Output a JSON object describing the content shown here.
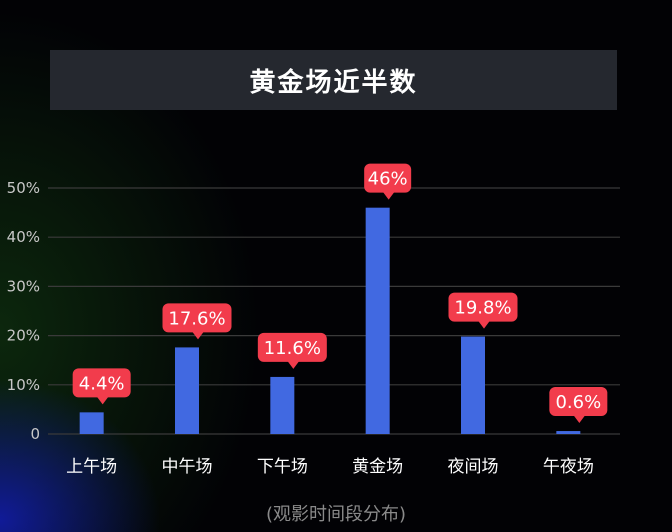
{
  "chart_data": {
    "type": "bar",
    "title": "黄金场近半数",
    "xlabel": "(观影时间段分布)",
    "ylabel": "",
    "categories": [
      "上午场",
      "中午场",
      "下午场",
      "黄金场",
      "夜间场",
      "午夜场"
    ],
    "values": [
      4.4,
      17.6,
      11.6,
      46,
      19.8,
      0.6
    ],
    "data_labels": [
      "4.4%",
      "17.6%",
      "11.6%",
      "46%",
      "19.8%",
      "0.6%"
    ],
    "ylim": [
      0,
      50
    ],
    "yticks": [
      0,
      10,
      20,
      30,
      40,
      50
    ],
    "ytick_labels": [
      "0",
      "10%",
      "20%",
      "30%",
      "40%",
      "50%"
    ],
    "grid": true,
    "colors": {
      "bar": "#4169e1",
      "label_bubble": "#f23c4c",
      "grid": "#3a3a3a"
    }
  }
}
